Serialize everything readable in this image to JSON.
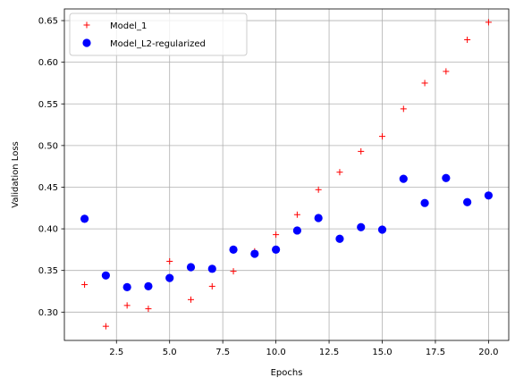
{
  "chart_data": {
    "type": "scatter",
    "title": "",
    "xlabel": "Epochs",
    "ylabel": "Validation Loss",
    "xlim": [
      0.05,
      20.95
    ],
    "ylim": [
      0.266,
      0.664
    ],
    "xticks": [
      "2.5",
      "5.0",
      "7.5",
      "10.0",
      "12.5",
      "15.0",
      "17.5",
      "20.0"
    ],
    "yticks": [
      "0.30",
      "0.35",
      "0.40",
      "0.45",
      "0.50",
      "0.55",
      "0.60",
      "0.65"
    ],
    "xtick_values": [
      2.5,
      5.0,
      7.5,
      10.0,
      12.5,
      15.0,
      17.5,
      20.0
    ],
    "ytick_values": [
      0.3,
      0.35,
      0.4,
      0.45,
      0.5,
      0.55,
      0.6,
      0.65
    ],
    "grid": true,
    "legend_position": "top-left",
    "x": [
      1,
      2,
      3,
      4,
      5,
      6,
      7,
      8,
      9,
      10,
      11,
      12,
      13,
      14,
      15,
      16,
      17,
      18,
      19,
      20
    ],
    "series": [
      {
        "name": "Model_1",
        "marker": "plus",
        "color": "#ff0000",
        "values": [
          0.333,
          0.283,
          0.308,
          0.304,
          0.361,
          0.315,
          0.331,
          0.349,
          0.373,
          0.393,
          0.417,
          0.447,
          0.468,
          0.493,
          0.511,
          0.544,
          0.575,
          0.589,
          0.627,
          0.648
        ]
      },
      {
        "name": "Model_L2-regularized",
        "marker": "circle",
        "color": "#0000ff",
        "values": [
          0.412,
          0.344,
          0.33,
          0.331,
          0.341,
          0.354,
          0.352,
          0.375,
          0.37,
          0.375,
          0.398,
          0.413,
          0.388,
          0.402,
          0.399,
          0.46,
          0.431,
          0.461,
          0.432,
          0.44
        ]
      }
    ]
  }
}
